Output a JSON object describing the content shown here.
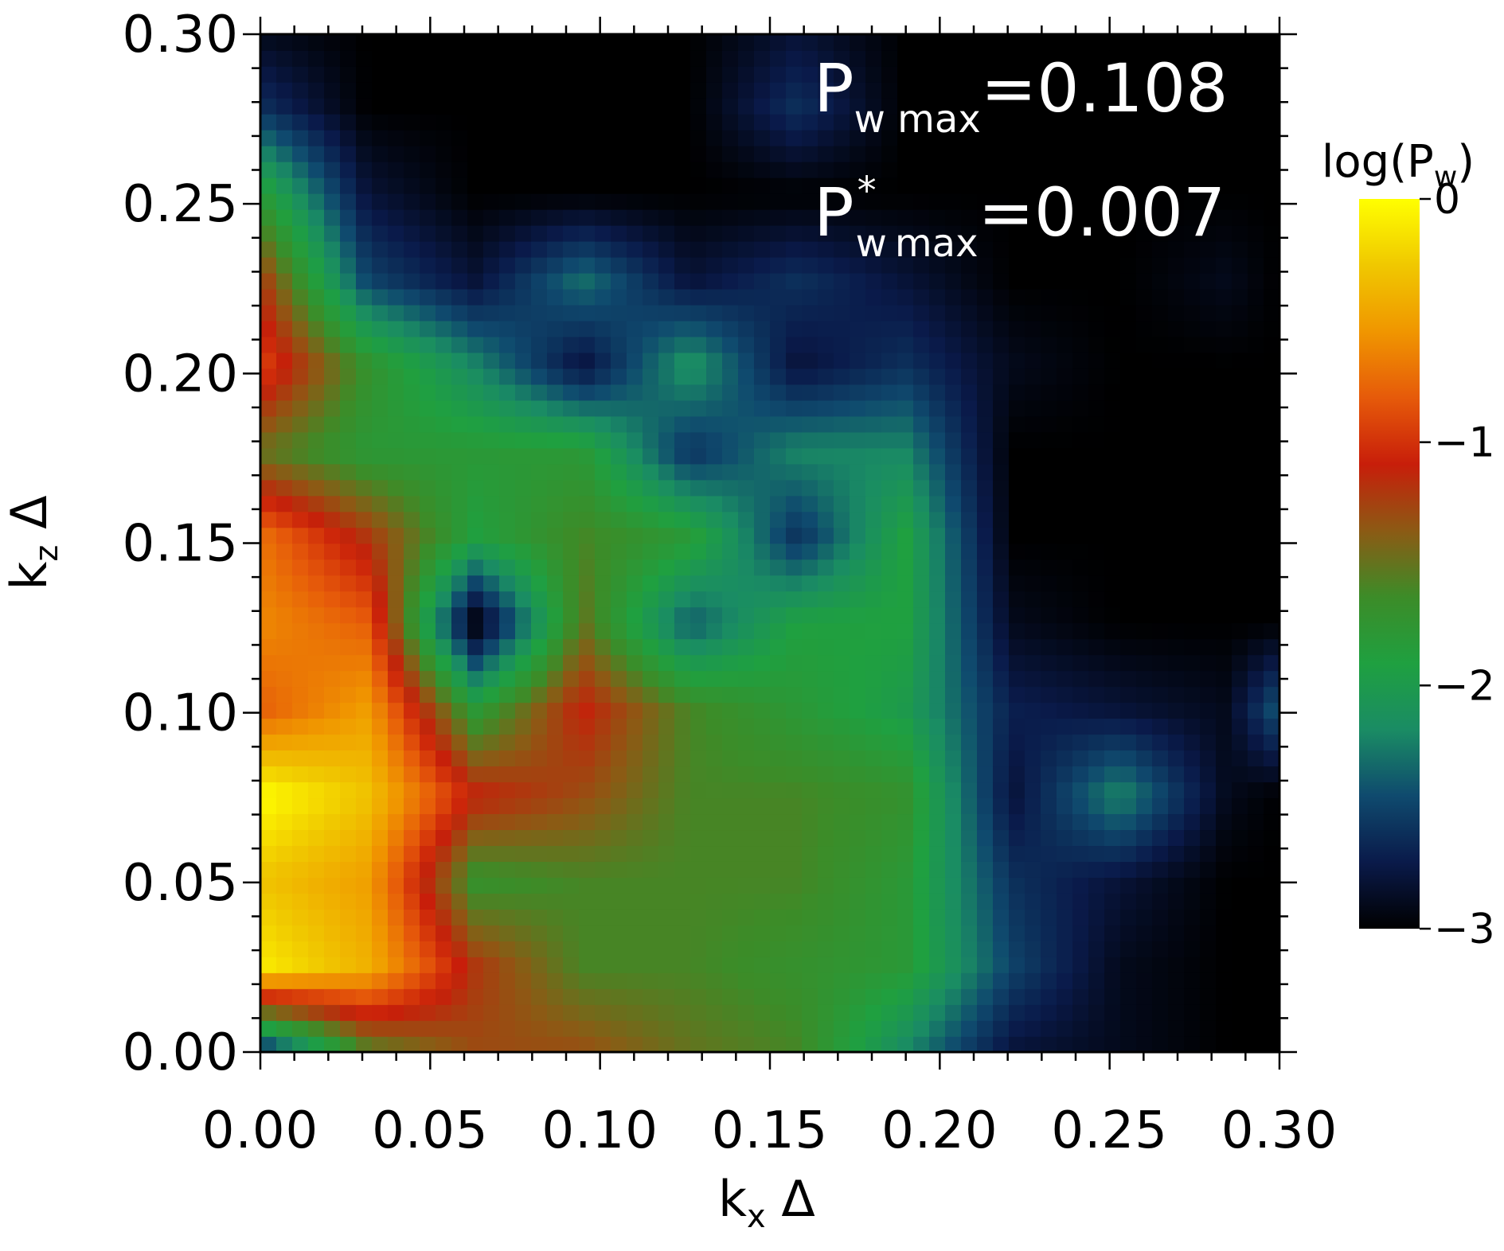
{
  "chart_data": {
    "type": "heatmap",
    "xlabel": {
      "base": "k",
      "sub": "x",
      "rest": " Δ"
    },
    "ylabel": {
      "base": "k",
      "sub": "z",
      "rest": " Δ"
    },
    "xlim": [
      0.0,
      0.3
    ],
    "ylim": [
      0.0,
      0.3
    ],
    "x_ticks": [
      "0.00",
      "0.05",
      "0.10",
      "0.15",
      "0.20",
      "0.25",
      "0.30"
    ],
    "y_ticks": [
      "0.00",
      "0.05",
      "0.10",
      "0.15",
      "0.20",
      "0.25",
      "0.30"
    ],
    "annotations": [
      {
        "base": "P",
        "sub": "w max",
        "sup": "",
        "value": "=0.108"
      },
      {
        "base": "P",
        "sub": "w",
        "sup": "*",
        "sub2": "max",
        "value": "=0.007"
      }
    ],
    "colorbar": {
      "title": {
        "base": "log(P",
        "sub": "w",
        "close": ")"
      },
      "ticks": [
        "0",
        "−1",
        "−2",
        "−3"
      ],
      "range": [
        -3,
        0
      ],
      "colors": [
        "#000000",
        "#0a1a4a",
        "#0f4a6e",
        "#1a8c64",
        "#1fa040",
        "#3c8c28",
        "#8c5a14",
        "#c81e0a",
        "#e65a0a",
        "#f09600",
        "#f0c800",
        "#ffff00"
      ]
    },
    "grid": {
      "x": [
        0.0,
        0.0316,
        0.0632,
        0.0949,
        0.1265,
        0.1581,
        0.1897,
        0.2214,
        0.253,
        0.2846,
        0.3
      ],
      "z": [
        0.0,
        0.0253,
        0.0506,
        0.0759,
        0.1012,
        0.1265,
        0.1518,
        0.1771,
        0.2024,
        0.2277,
        0.253,
        0.2783,
        0.3
      ]
    },
    "values": [
      [
        -2.7,
        -1.6,
        -1.3,
        -1.3,
        -1.5,
        -1.6,
        -2.2,
        -2.8,
        -2.9,
        -3.0,
        -3.0
      ],
      [
        -0.1,
        -0.4,
        -1.2,
        -1.6,
        -1.6,
        -1.7,
        -1.8,
        -2.5,
        -2.9,
        -3.0,
        -3.0
      ],
      [
        -0.3,
        -0.5,
        -1.7,
        -1.6,
        -1.6,
        -1.6,
        -1.8,
        -2.6,
        -2.8,
        -3.0,
        -3.0
      ],
      [
        -0.0,
        -0.3,
        -1.1,
        -1.3,
        -1.6,
        -1.6,
        -1.7,
        -2.8,
        -2.2,
        -2.9,
        -3.0
      ],
      [
        -0.8,
        -0.5,
        -1.8,
        -1.1,
        -1.6,
        -1.8,
        -2.0,
        -2.7,
        -2.8,
        -2.9,
        -2.4
      ],
      [
        -0.6,
        -0.8,
        -3.0,
        -1.5,
        -2.4,
        -1.9,
        -1.9,
        -2.9,
        -3.0,
        -3.0,
        -3.0
      ],
      [
        -0.7,
        -1.2,
        -1.9,
        -1.6,
        -1.8,
        -2.6,
        -1.9,
        -3.0,
        -3.0,
        -3.0,
        -3.0
      ],
      [
        -1.5,
        -1.8,
        -1.8,
        -1.8,
        -2.6,
        -2.2,
        -2.2,
        -3.0,
        -3.0,
        -3.0,
        -3.0
      ],
      [
        -0.9,
        -1.7,
        -2.2,
        -2.8,
        -2.1,
        -2.8,
        -2.6,
        -2.9,
        -3.0,
        -3.0,
        -3.0
      ],
      [
        -1.2,
        -2.5,
        -2.8,
        -2.3,
        -2.8,
        -2.6,
        -2.8,
        -3.0,
        -3.0,
        -2.9,
        -3.0
      ],
      [
        -1.8,
        -2.8,
        -3.0,
        -3.0,
        -3.0,
        -3.0,
        -3.0,
        -3.0,
        -3.0,
        -3.0,
        -3.0
      ],
      [
        -2.6,
        -3.0,
        -3.0,
        -3.0,
        -3.0,
        -2.6,
        -3.0,
        -3.0,
        -3.0,
        -3.0,
        -3.0
      ],
      [
        -2.9,
        -3.0,
        -3.0,
        -3.0,
        -3.0,
        -2.8,
        -3.0,
        -3.0,
        -3.0,
        -3.0,
        -3.0
      ]
    ]
  }
}
